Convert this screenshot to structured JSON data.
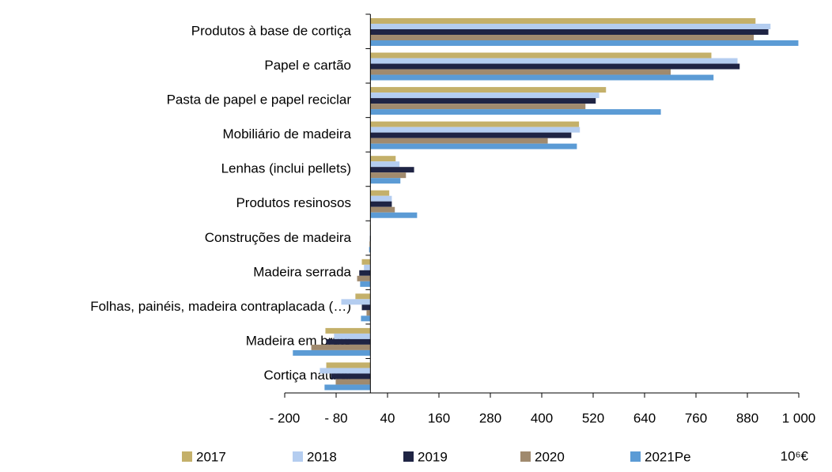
{
  "chart_data": {
    "type": "bar",
    "orientation": "horizontal",
    "categories": [
      "Produtos à base de cortiça",
      "Papel e cartão",
      "Pasta de papel e papel reciclar",
      "Mobiliário de madeira",
      "Lenhas (inclui pellets)",
      "Produtos resinosos",
      "Construções de madeira",
      "Madeira serrada",
      "Folhas, painéis, madeira contraplacada (…)",
      "Madeira em bruto",
      "Cortiça natural"
    ],
    "series": [
      {
        "name": "2017",
        "color": "#c4b06a",
        "values": [
          899,
          796,
          550,
          487,
          59,
          44,
          -1,
          -20,
          -35,
          -105,
          -103
        ]
      },
      {
        "name": "2018",
        "color": "#b4cdf0",
        "values": [
          934,
          857,
          534,
          489,
          68,
          50,
          -1,
          -15,
          -68,
          -85,
          -118
        ]
      },
      {
        "name": "2019",
        "color": "#1f2444",
        "values": [
          929,
          862,
          526,
          469,
          102,
          50,
          -1,
          -26,
          -20,
          -103,
          -92
        ]
      },
      {
        "name": "2020",
        "color": "#a08a6e",
        "values": [
          895,
          701,
          502,
          414,
          83,
          57,
          -2,
          -31,
          -9,
          -138,
          -81
        ]
      },
      {
        "name": "2021Pe",
        "color": "#5b9bd5",
        "values": [
          999,
          801,
          678,
          482,
          70,
          109,
          -3,
          -24,
          -22,
          -181,
          -107
        ]
      }
    ],
    "xlim": [
      -200,
      1000
    ],
    "xticks": [
      {
        "value": -200,
        "label": "- 200"
      },
      {
        "value": -80,
        "label": "- 80"
      },
      40,
      160,
      280,
      400,
      520,
      640,
      760,
      880,
      {
        "value": 1000,
        "label": "1 000"
      }
    ],
    "unit_label": "10⁶€",
    "legend": "bottom"
  }
}
